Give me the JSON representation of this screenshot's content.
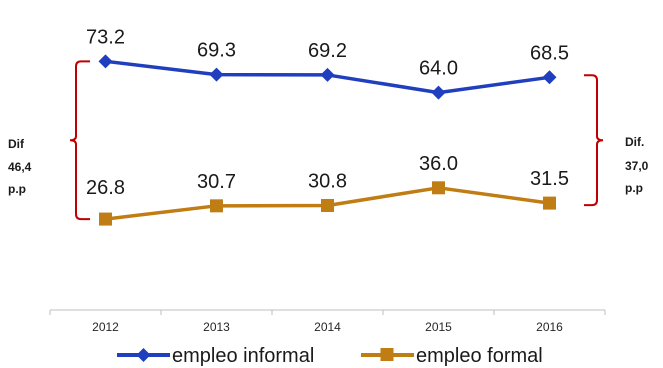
{
  "chart_data": {
    "type": "line",
    "categories": [
      "2012",
      "2013",
      "2014",
      "2015",
      "2016"
    ],
    "series": [
      {
        "name": "empleo informal",
        "values": [
          73.2,
          69.3,
          69.2,
          64.0,
          68.5
        ],
        "color": "#1f3fbf",
        "marker": "diamond"
      },
      {
        "name": "empleo formal",
        "values": [
          26.8,
          30.7,
          30.8,
          36.0,
          31.5
        ],
        "color": "#c07d13",
        "marker": "square"
      }
    ],
    "data_labels": [
      "73.2",
      "69.3",
      "69.2",
      "64.0",
      "68.5",
      "26.8",
      "30.7",
      "30.8",
      "36.0",
      "31.5"
    ],
    "annotations": {
      "left": [
        "Dif",
        "46,4",
        "p.p"
      ],
      "right": [
        "Dif.",
        "37,0",
        "p.p"
      ],
      "bracket_color": "#c00000"
    },
    "legend_position": "bottom",
    "grid": false
  }
}
